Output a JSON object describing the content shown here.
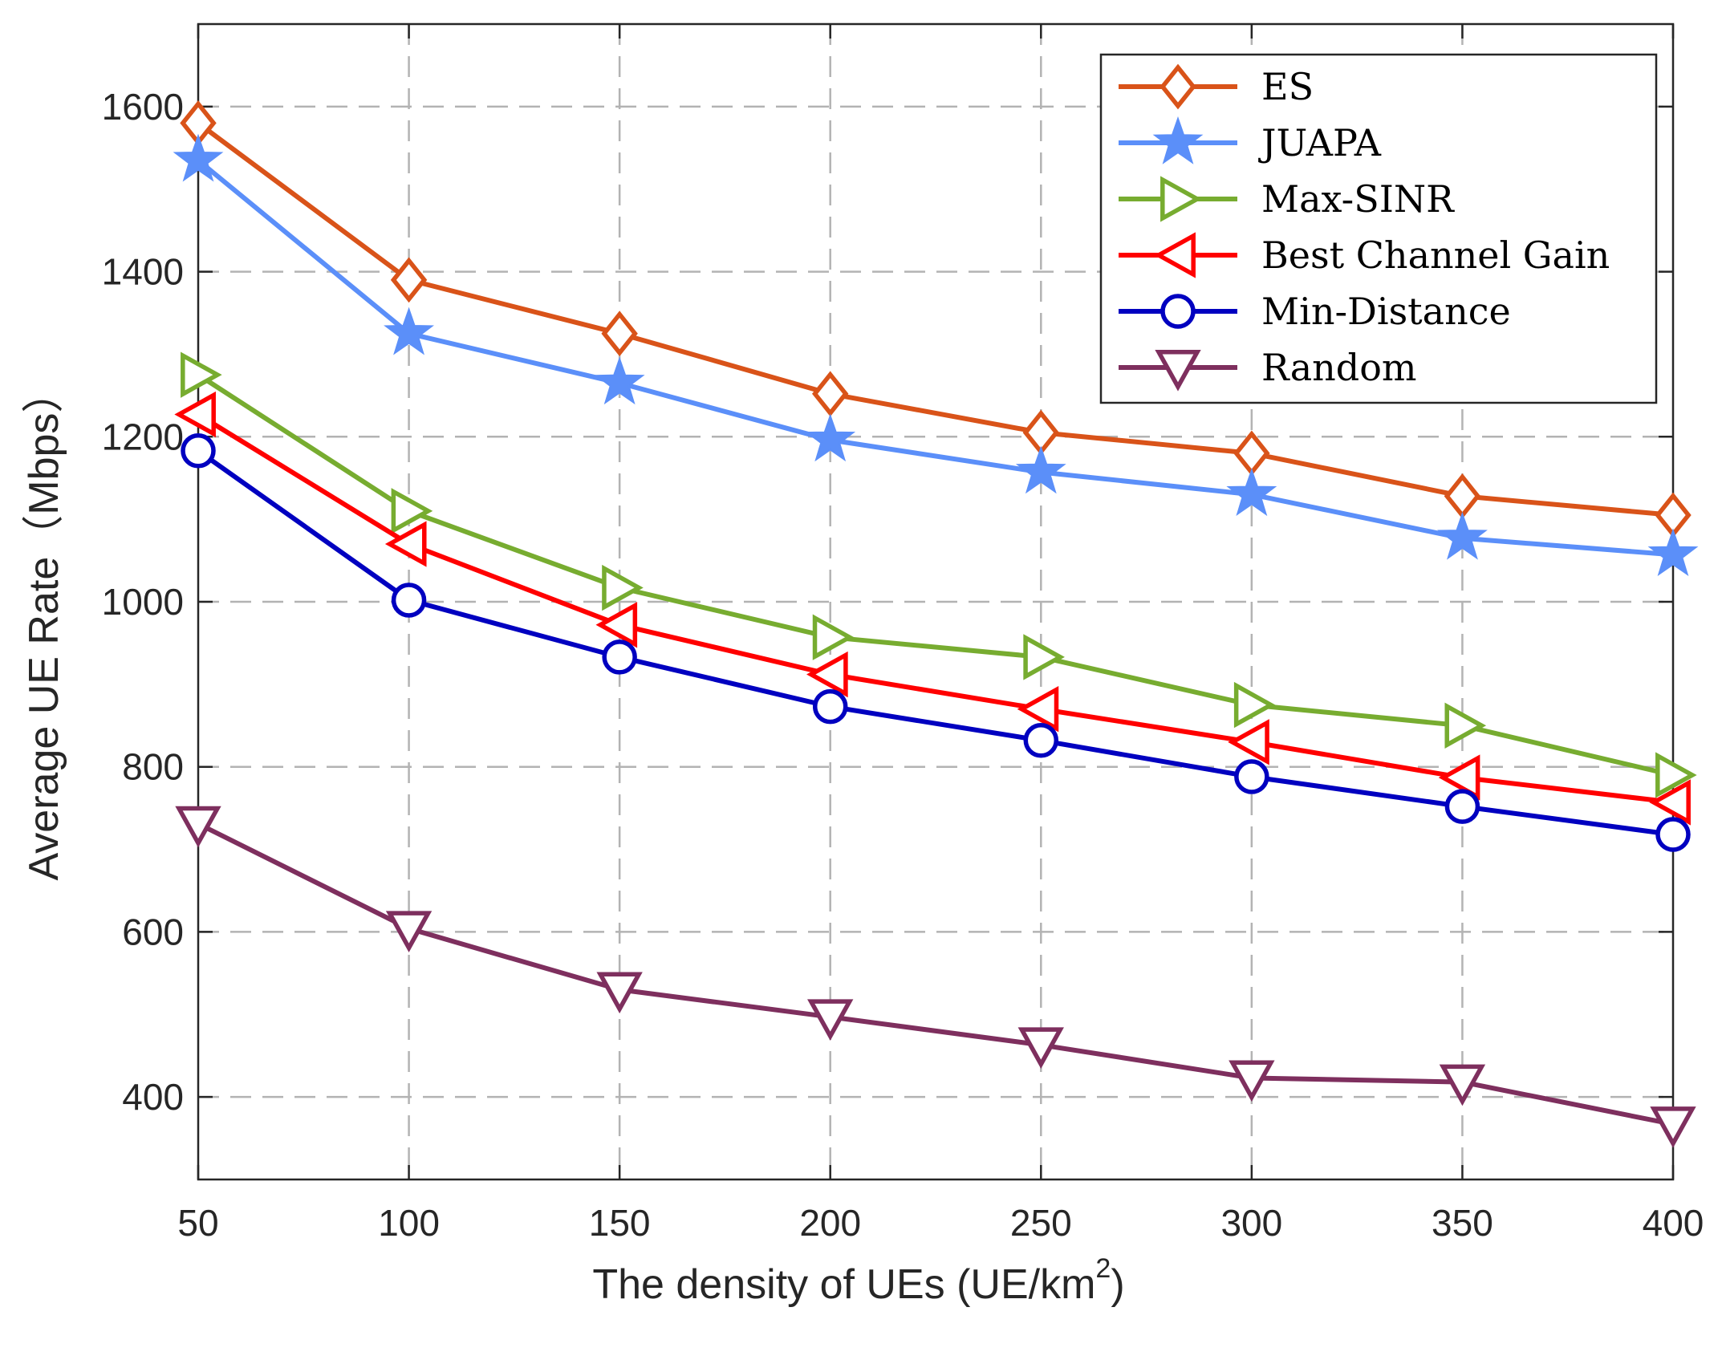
{
  "chart_data": {
    "type": "line",
    "xlabel": "The density of UEs (UE/km",
    "xlabel_sup": "2",
    "xlabel_close": ")",
    "ylabel": "Average UE Rate（Mbps）",
    "x": [
      50,
      100,
      150,
      200,
      250,
      300,
      350,
      400
    ],
    "xticks": [
      "50",
      "100",
      "150",
      "200",
      "250",
      "300",
      "350",
      "400"
    ],
    "yticks": [
      400,
      600,
      800,
      1000,
      1200,
      1400,
      1600
    ],
    "ytick_labels": [
      "400",
      "600",
      "800",
      "1000",
      "1200",
      "1400",
      "1600"
    ],
    "xlim": [
      50,
      400
    ],
    "ylim": [
      300,
      1700
    ],
    "grid": true,
    "legend_position": "top-right",
    "series": [
      {
        "name": "ES",
        "color": "#D95319",
        "marker": "diamond",
        "values": [
          1580,
          1390,
          1325,
          1252,
          1205,
          1180,
          1128,
          1105
        ]
      },
      {
        "name": "JUAPA",
        "color": "#5B8FF9",
        "marker": "star",
        "values": [
          1535,
          1325,
          1265,
          1196,
          1157,
          1130,
          1077,
          1057
        ]
      },
      {
        "name": "Max-SINR",
        "color": "#77AC30",
        "marker": "triangle-right",
        "values": [
          1275,
          1110,
          1017,
          957,
          933,
          875,
          850,
          790
        ]
      },
      {
        "name": "Best Channel Gain",
        "color": "#FF0000",
        "marker": "triangle-left",
        "values": [
          1227,
          1070,
          972,
          912,
          870,
          830,
          787,
          757
        ]
      },
      {
        "name": "Min-Distance",
        "color": "#0000C0",
        "marker": "circle",
        "values": [
          1183,
          1002,
          933,
          873,
          832,
          788,
          752,
          718
        ]
      },
      {
        "name": "Random",
        "color": "#7E2F5E",
        "marker": "triangle-down",
        "values": [
          731,
          604,
          530,
          497,
          463,
          423,
          418,
          367
        ]
      }
    ]
  }
}
